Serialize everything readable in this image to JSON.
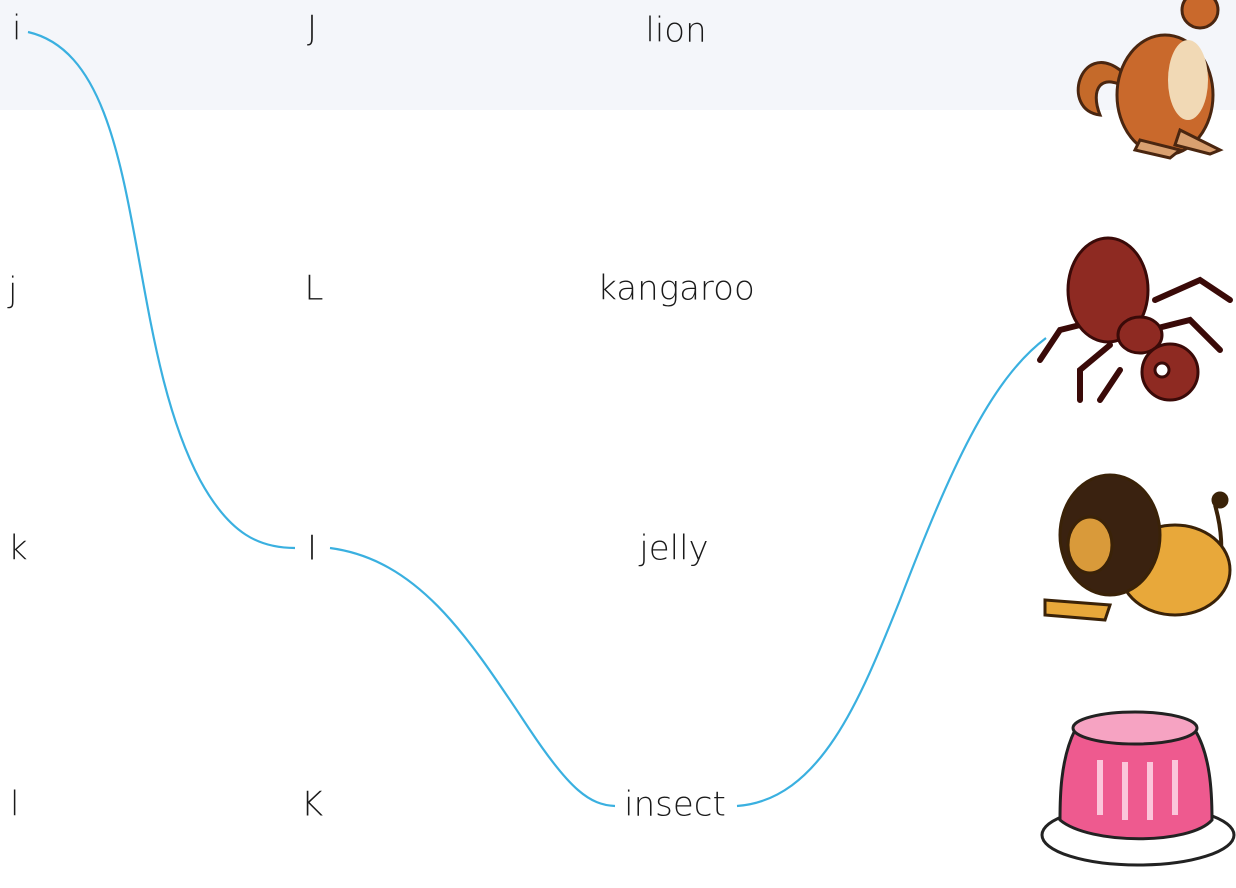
{
  "lowercase_letters": [
    "i",
    "j",
    "k",
    "l"
  ],
  "uppercase_letters": [
    "J",
    "L",
    "I",
    "K"
  ],
  "words": [
    "lion",
    "kangaroo",
    "jelly",
    "insect"
  ]
}
